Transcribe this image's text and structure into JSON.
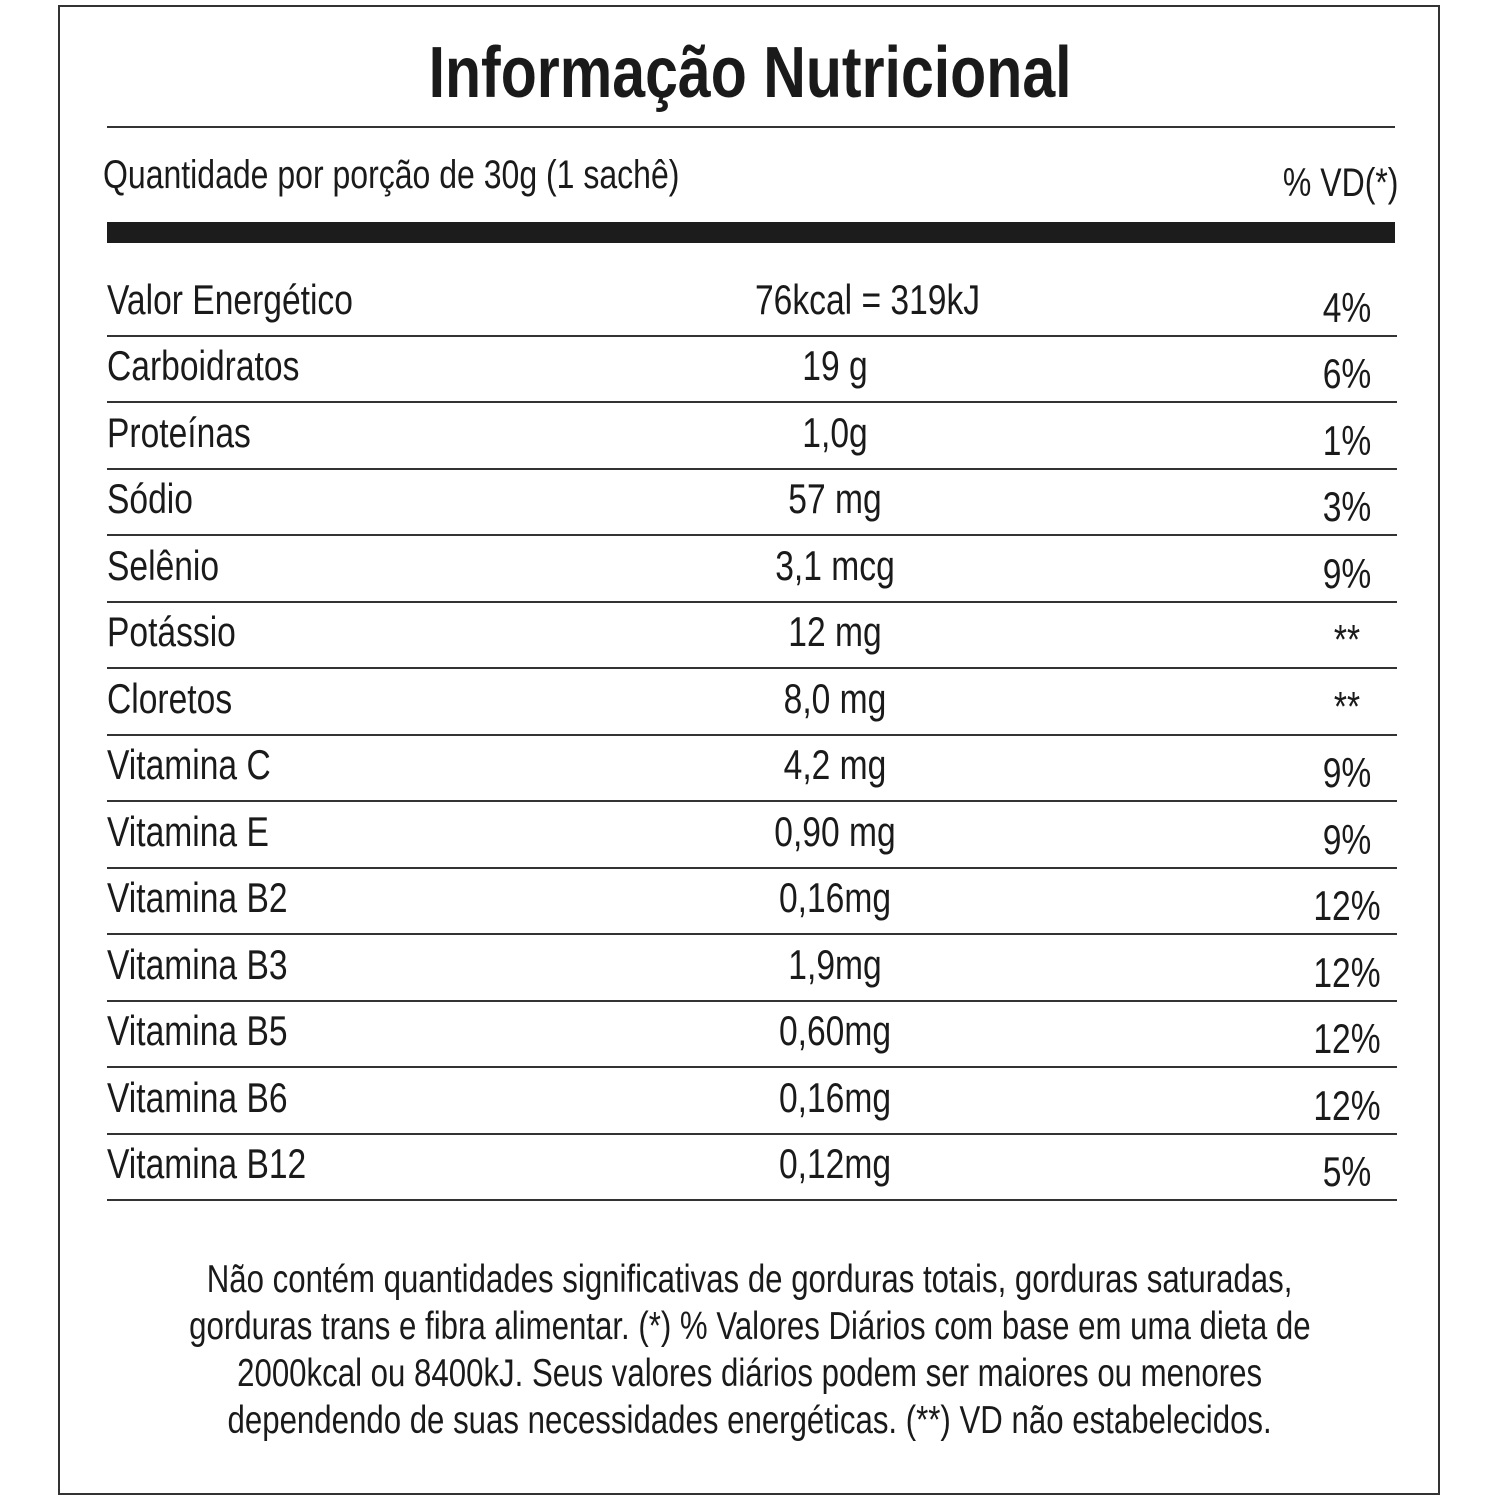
{
  "title": "Informação Nutricional",
  "header": {
    "serving": "Quantidade por porção de 30g (1 sachê)",
    "vd": "% VD(*)"
  },
  "rows": [
    {
      "name": "Valor Energético",
      "value": "76kcal = 319kJ",
      "vd": "4%"
    },
    {
      "name": "Carboidratos",
      "value": "19 g",
      "vd": "6%"
    },
    {
      "name": "Proteínas",
      "value": "1,0g",
      "vd": "1%"
    },
    {
      "name": "Sódio",
      "value": "57 mg",
      "vd": "3%"
    },
    {
      "name": "Selênio",
      "value": "3,1 mcg",
      "vd": "9%"
    },
    {
      "name": "Potássio",
      "value": "12 mg",
      "vd": "**"
    },
    {
      "name": "Cloretos",
      "value": "8,0 mg",
      "vd": "**"
    },
    {
      "name": "Vitamina C",
      "value": "4,2 mg",
      "vd": "9%"
    },
    {
      "name": "Vitamina E",
      "value": "0,90 mg",
      "vd": "9%"
    },
    {
      "name": "Vitamina B2",
      "value": "0,16mg",
      "vd": "12%"
    },
    {
      "name": "Vitamina B3",
      "value": "1,9mg",
      "vd": "12%"
    },
    {
      "name": "Vitamina B5",
      "value": "0,60mg",
      "vd": "12%"
    },
    {
      "name": "Vitamina B6",
      "value": "0,16mg",
      "vd": "12%"
    },
    {
      "name": "Vitamina B12",
      "value": "0,12mg",
      "vd": "5%"
    }
  ],
  "footnote_lines": [
    "Não contém quantidades significativas de gorduras totais, gorduras saturadas,",
    "gorduras trans e fibra alimentar. (*) % Valores Diários com base em uma dieta de",
    "2000kcal ou 8400kJ. Seus valores diários podem ser maiores ou menores",
    "dependendo de suas necessidades energéticas. (**) VD não estabelecidos."
  ]
}
